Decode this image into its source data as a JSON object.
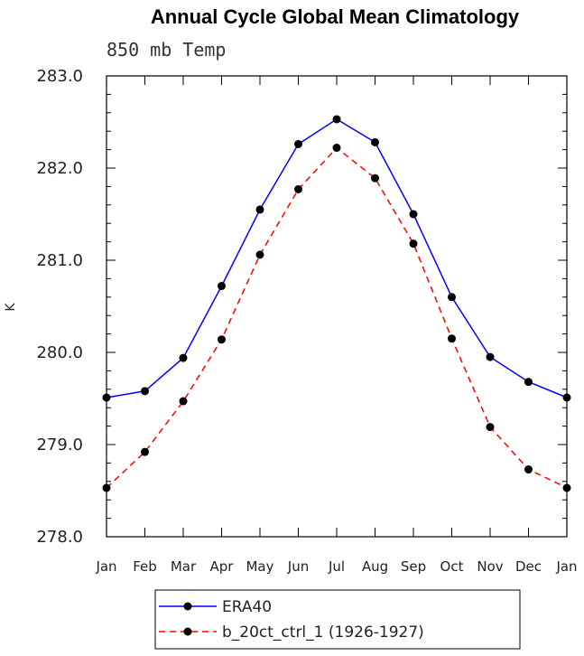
{
  "chart_data": {
    "type": "line",
    "title": "Annual Cycle Global Mean Climatology",
    "subtitle": "850 mb Temp",
    "xlabel": "",
    "ylabel": "K",
    "categories": [
      "Jan",
      "Feb",
      "Mar",
      "Apr",
      "May",
      "Jun",
      "Jul",
      "Aug",
      "Sep",
      "Oct",
      "Nov",
      "Dec",
      "Jan"
    ],
    "ylim": [
      278.0,
      283.0
    ],
    "yticks": [
      "278.0",
      "279.0",
      "280.0",
      "281.0",
      "282.0",
      "283.0"
    ],
    "grid": false,
    "legend_placement": "bottom",
    "series": [
      {
        "name": "ERA40",
        "color": "#0000ff",
        "dash": "solid",
        "values": [
          279.51,
          279.58,
          279.94,
          280.72,
          281.55,
          282.26,
          282.53,
          282.28,
          281.5,
          280.6,
          279.95,
          279.68,
          279.51
        ]
      },
      {
        "name": "b_20ct_ctrl_1 (1926-1927)",
        "color": "#ff0000",
        "dash": "dashed",
        "values": [
          278.53,
          278.92,
          279.47,
          280.14,
          281.06,
          281.77,
          282.22,
          281.89,
          281.18,
          280.15,
          279.19,
          278.73,
          278.53
        ]
      }
    ]
  }
}
